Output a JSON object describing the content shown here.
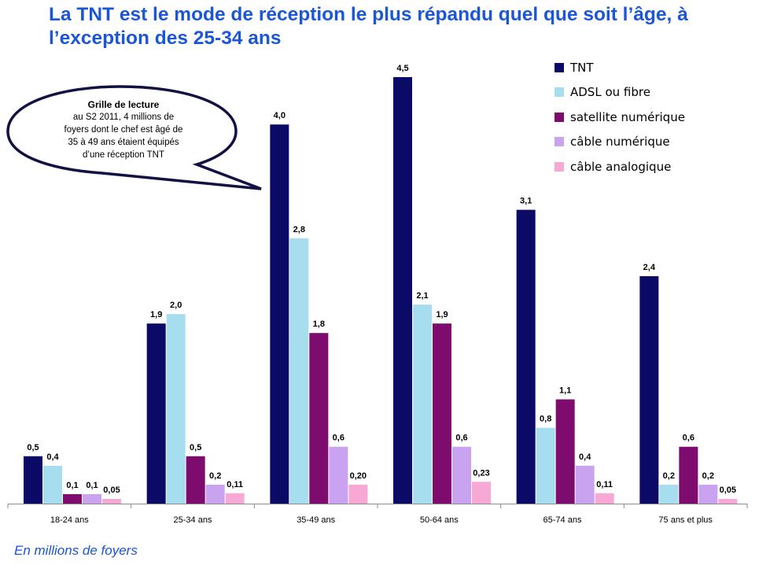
{
  "title": "La TNT est le mode de réception le plus répandu quel que soit l’âge, à l’exception des 25-34 ans",
  "note": {
    "title": "Grille de lecture",
    "lines": [
      "au S2 2011, 4 millions de",
      "foyers dont le chef est âgé de",
      "35 à 49 ans étaient équipés",
      "d’une réception TNT"
    ]
  },
  "footnote": "En millions de foyers",
  "colors": {
    "title": "#1a56d8",
    "TNT": "#0b0a66",
    "ADSL ou fibre": "#a6def0",
    "satellite numérique": "#7e0b6e",
    "câble numérique": "#c9a3f0",
    "câble analogique": "#f7a8d4"
  },
  "chart_data": {
    "type": "bar",
    "categories": [
      "18-24 ans",
      "25-34 ans",
      "35-49 ans",
      "50-64 ans",
      "65-74 ans",
      "75 ans et plus"
    ],
    "series": [
      {
        "name": "TNT",
        "values": [
          0.5,
          1.9,
          4.0,
          4.5,
          3.1,
          2.4
        ],
        "labels": [
          "0,5",
          "1,9",
          "4,0",
          "4,5",
          "3,1",
          "2,4"
        ]
      },
      {
        "name": "ADSL ou fibre",
        "values": [
          0.4,
          2.0,
          2.8,
          2.1,
          0.8,
          0.2
        ],
        "labels": [
          "0,4",
          "2,0",
          "2,8",
          "2,1",
          "0,8",
          "0,2"
        ]
      },
      {
        "name": "satellite numérique",
        "values": [
          0.1,
          0.5,
          1.8,
          1.9,
          1.1,
          0.6
        ],
        "labels": [
          "0,1",
          "0,5",
          "1,8",
          "1,9",
          "1,1",
          "0,6"
        ]
      },
      {
        "name": "câble numérique",
        "values": [
          0.1,
          0.2,
          0.6,
          0.6,
          0.4,
          0.2
        ],
        "labels": [
          "0,1",
          "0,2",
          "0,6",
          "0,6",
          "0,4",
          "0,2"
        ]
      },
      {
        "name": "câble analogique",
        "values": [
          0.05,
          0.11,
          0.2,
          0.23,
          0.11,
          0.05
        ],
        "labels": [
          "0,05",
          "0,11",
          "0,20",
          "0,23",
          "0,11",
          "0,05"
        ]
      }
    ],
    "ylim": [
      0,
      4.5
    ],
    "grid": false,
    "legend_position": "top-right"
  }
}
